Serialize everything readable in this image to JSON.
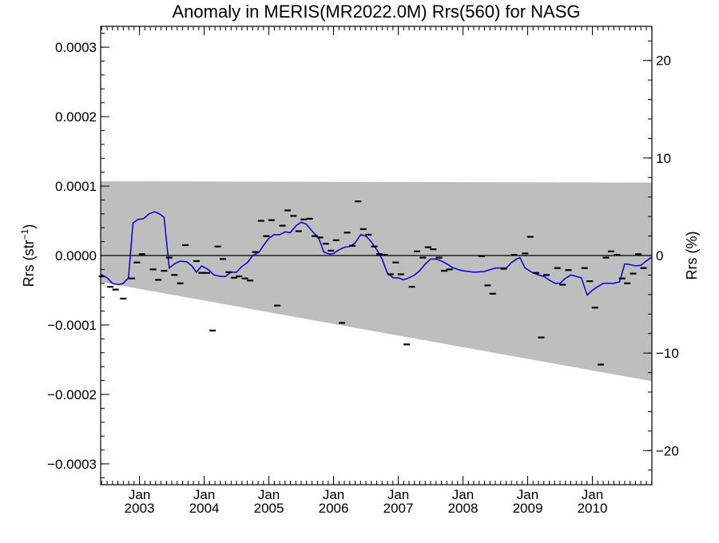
{
  "chart_data": {
    "type": "line",
    "title": "Anomaly in MERIS(MR2022.0M) Rrs(560) for NASG",
    "ylabel_left": "Rrs (str",
    "ylabel_left_sup": "−1",
    "ylabel_left_close": ")",
    "ylabel_right": "Rrs (%)",
    "x_range": [
      2002.4,
      2010.92
    ],
    "y_range": [
      -0.00033,
      0.00033
    ],
    "y_right_range": [
      -23.5,
      23.5
    ],
    "x_ticks": [
      {
        "x": 2003.0,
        "top": "Jan",
        "bottom": "2003"
      },
      {
        "x": 2004.0,
        "top": "Jan",
        "bottom": "2004"
      },
      {
        "x": 2005.0,
        "top": "Jan",
        "bottom": "2005"
      },
      {
        "x": 2006.0,
        "top": "Jan",
        "bottom": "2006"
      },
      {
        "x": 2007.0,
        "top": "Jan",
        "bottom": "2007"
      },
      {
        "x": 2008.0,
        "top": "Jan",
        "bottom": "2008"
      },
      {
        "x": 2009.0,
        "top": "Jan",
        "bottom": "2009"
      },
      {
        "x": 2010.0,
        "top": "Jan",
        "bottom": "2010"
      }
    ],
    "y_ticks_left": [
      {
        "v": 0.0003,
        "label": "0.0003"
      },
      {
        "v": 0.0002,
        "label": "0.0002"
      },
      {
        "v": 0.0001,
        "label": "0.0001"
      },
      {
        "v": 0.0,
        "label": "0.0000"
      },
      {
        "v": -0.0001,
        "label": "−0.0001"
      },
      {
        "v": -0.0002,
        "label": "−0.0002"
      },
      {
        "v": -0.0003,
        "label": "−0.0003"
      }
    ],
    "y_ticks_right": [
      {
        "v": 20,
        "label": "20"
      },
      {
        "v": 10,
        "label": "10"
      },
      {
        "v": 0,
        "label": "0"
      },
      {
        "v": -10,
        "label": "−10"
      },
      {
        "v": -20,
        "label": "−20"
      }
    ],
    "band": {
      "upper": [
        [
          2002.4,
          0.000107
        ],
        [
          2010.92,
          0.000105
        ]
      ],
      "lower": [
        [
          2002.4,
          -3.8e-05
        ],
        [
          2010.92,
          -0.000181
        ]
      ],
      "color": "#bebebe"
    },
    "zero_line": 0.0,
    "series": [
      {
        "style": "line",
        "color": "#0000dd",
        "points": [
          [
            2002.4,
            -2.7e-05
          ],
          [
            2002.5,
            -3.2e-05
          ],
          [
            2002.58,
            -4e-05
          ],
          [
            2002.67,
            -4.2e-05
          ],
          [
            2002.75,
            -4e-05
          ],
          [
            2002.83,
            -3.2e-05
          ],
          [
            2002.9,
            4.7e-05
          ],
          [
            2002.98,
            5.2e-05
          ],
          [
            2003.06,
            5.3e-05
          ],
          [
            2003.15,
            6e-05
          ],
          [
            2003.23,
            6.3e-05
          ],
          [
            2003.31,
            6e-05
          ],
          [
            2003.38,
            5.5e-05
          ],
          [
            2003.46,
            -1.8e-05
          ],
          [
            2003.54,
            -1.2e-05
          ],
          [
            2003.63,
            -8e-06
          ],
          [
            2003.73,
            -9e-06
          ],
          [
            2003.81,
            -1.5e-05
          ],
          [
            2003.88,
            -2.4e-05
          ],
          [
            2003.96,
            -1.5e-05
          ],
          [
            2004.06,
            -2e-05
          ],
          [
            2004.15,
            -2.8e-05
          ],
          [
            2004.25,
            -3e-05
          ],
          [
            2004.33,
            -3e-05
          ],
          [
            2004.41,
            -2.4e-05
          ],
          [
            2004.5,
            -2.4e-05
          ],
          [
            2004.58,
            -1.6e-05
          ],
          [
            2004.67,
            -1e-05
          ],
          [
            2004.75,
            0.0
          ],
          [
            2004.85,
            5e-06
          ],
          [
            2004.92,
            1.5e-05
          ],
          [
            2005.0,
            2.5e-05
          ],
          [
            2005.08,
            3e-05
          ],
          [
            2005.17,
            3e-05
          ],
          [
            2005.25,
            3.4e-05
          ],
          [
            2005.33,
            3.3e-05
          ],
          [
            2005.42,
            4.3e-05
          ],
          [
            2005.5,
            4.8e-05
          ],
          [
            2005.58,
            4.5e-05
          ],
          [
            2005.67,
            3.5e-05
          ],
          [
            2005.77,
            2.5e-05
          ],
          [
            2005.85,
            5e-06
          ],
          [
            2005.94,
            2e-06
          ],
          [
            2006.0,
            3e-06
          ],
          [
            2006.08,
            8e-06
          ],
          [
            2006.17,
            1.2e-05
          ],
          [
            2006.25,
            1.3e-05
          ],
          [
            2006.33,
            1.8e-05
          ],
          [
            2006.42,
            3e-05
          ],
          [
            2006.5,
            2.8e-05
          ],
          [
            2006.58,
            2e-05
          ],
          [
            2006.67,
            8e-06
          ],
          [
            2006.75,
            -5e-06
          ],
          [
            2006.83,
            -2.5e-05
          ],
          [
            2006.92,
            -3.2e-05
          ],
          [
            2007.0,
            -3.2e-05
          ],
          [
            2007.08,
            -3.5e-05
          ],
          [
            2007.17,
            -3.2e-05
          ],
          [
            2007.25,
            -2.8e-05
          ],
          [
            2007.33,
            -2.2e-05
          ],
          [
            2007.42,
            -1.2e-05
          ],
          [
            2007.5,
            -5e-06
          ],
          [
            2007.58,
            -5e-06
          ],
          [
            2007.67,
            -8e-06
          ],
          [
            2007.75,
            -1.2e-05
          ],
          [
            2007.83,
            -1.7e-05
          ],
          [
            2007.92,
            -2e-05
          ],
          [
            2008.0,
            -2.2e-05
          ],
          [
            2008.17,
            -2.4e-05
          ],
          [
            2008.33,
            -2.3e-05
          ],
          [
            2008.5,
            -1.8e-05
          ],
          [
            2008.67,
            -1.8e-05
          ],
          [
            2008.75,
            -1e-05
          ],
          [
            2008.83,
            -5e-06
          ],
          [
            2008.88,
            -3e-06
          ],
          [
            2008.96,
            -1.8e-05
          ],
          [
            2009.08,
            -2.5e-05
          ],
          [
            2009.17,
            -2.8e-05
          ],
          [
            2009.25,
            -3e-05
          ],
          [
            2009.33,
            -3.5e-05
          ],
          [
            2009.42,
            -4e-05
          ],
          [
            2009.5,
            -4e-05
          ],
          [
            2009.58,
            -3.3e-05
          ],
          [
            2009.67,
            -2.8e-05
          ],
          [
            2009.75,
            -3e-05
          ],
          [
            2009.83,
            -3.2e-05
          ],
          [
            2009.92,
            -5.7e-05
          ],
          [
            2010.0,
            -5e-05
          ],
          [
            2010.08,
            -4.5e-05
          ],
          [
            2010.17,
            -4e-05
          ],
          [
            2010.25,
            -4e-05
          ],
          [
            2010.33,
            -4e-05
          ],
          [
            2010.42,
            -3.8e-05
          ],
          [
            2010.5,
            -1.2e-05
          ],
          [
            2010.58,
            -1.3e-05
          ],
          [
            2010.67,
            -1.5e-05
          ],
          [
            2010.75,
            -1.4e-05
          ],
          [
            2010.83,
            -8e-06
          ],
          [
            2010.92,
            -2e-06
          ]
        ]
      },
      {
        "style": "markers",
        "color": "#000000",
        "points": [
          [
            2002.42,
            -3e-05
          ],
          [
            2002.55,
            -4.5e-05
          ],
          [
            2002.63,
            -4.9e-05
          ],
          [
            2002.75,
            -6.2e-05
          ],
          [
            2002.88,
            -3.3e-05
          ],
          [
            2002.96,
            -1e-05
          ],
          [
            2003.04,
            2e-06
          ],
          [
            2003.21,
            -2e-05
          ],
          [
            2003.29,
            -3.5e-05
          ],
          [
            2003.38,
            -2.2e-05
          ],
          [
            2003.46,
            -3e-06
          ],
          [
            2003.54,
            -2.8e-05
          ],
          [
            2003.63,
            -4e-05
          ],
          [
            2003.71,
            1.5e-05
          ],
          [
            2003.88,
            -8e-06
          ],
          [
            2003.96,
            -2.5e-05
          ],
          [
            2004.04,
            -2.5e-05
          ],
          [
            2004.13,
            -0.000108
          ],
          [
            2004.21,
            1.3e-05
          ],
          [
            2004.29,
            -5e-06
          ],
          [
            2004.38,
            -2.4e-05
          ],
          [
            2004.46,
            -3.2e-05
          ],
          [
            2004.54,
            -3e-05
          ],
          [
            2004.63,
            -3.3e-05
          ],
          [
            2004.71,
            -3.6e-05
          ],
          [
            2004.79,
            5e-06
          ],
          [
            2004.88,
            5e-05
          ],
          [
            2004.96,
            2.8e-05
          ],
          [
            2005.04,
            5.1e-05
          ],
          [
            2005.13,
            -7.2e-05
          ],
          [
            2005.21,
            4.3e-05
          ],
          [
            2005.29,
            6.5e-05
          ],
          [
            2005.38,
            5.7e-05
          ],
          [
            2005.46,
            3.5e-05
          ],
          [
            2005.54,
            5.2e-05
          ],
          [
            2005.63,
            5.3e-05
          ],
          [
            2005.71,
            2.8e-05
          ],
          [
            2005.79,
            2.6e-05
          ],
          [
            2005.88,
            1.7e-05
          ],
          [
            2005.96,
            7e-06
          ],
          [
            2006.04,
            2.2e-05
          ],
          [
            2006.13,
            -9.7e-05
          ],
          [
            2006.21,
            3.3e-05
          ],
          [
            2006.29,
            1.4e-05
          ],
          [
            2006.38,
            7.8e-05
          ],
          [
            2006.46,
            3.8e-05
          ],
          [
            2006.54,
            3e-05
          ],
          [
            2006.63,
            1.3e-05
          ],
          [
            2006.71,
            2e-06
          ],
          [
            2006.79,
            1e-06
          ],
          [
            2006.88,
            -2.7e-05
          ],
          [
            2006.96,
            -1e-05
          ],
          [
            2007.04,
            -2.7e-05
          ],
          [
            2007.13,
            -0.000128
          ],
          [
            2007.21,
            -4.5e-05
          ],
          [
            2007.29,
            6e-06
          ],
          [
            2007.38,
            -3e-06
          ],
          [
            2007.46,
            1.2e-05
          ],
          [
            2007.54,
            9e-06
          ],
          [
            2007.63,
            -3e-06
          ],
          [
            2007.71,
            -2.2e-05
          ],
          [
            2007.79,
            -2e-05
          ],
          [
            2008.29,
            -1e-06
          ],
          [
            2008.38,
            -4.3e-05
          ],
          [
            2008.46,
            -5.5e-05
          ],
          [
            2008.63,
            -1.9e-05
          ],
          [
            2008.79,
            1e-06
          ],
          [
            2008.96,
            3e-06
          ],
          [
            2009.04,
            2.7e-05
          ],
          [
            2009.13,
            -2.5e-05
          ],
          [
            2009.21,
            -0.000118
          ],
          [
            2009.29,
            -2.8e-05
          ],
          [
            2009.46,
            -1.8e-05
          ],
          [
            2009.54,
            -4.2e-05
          ],
          [
            2009.63,
            -2.1e-05
          ],
          [
            2009.88,
            -1.8e-05
          ],
          [
            2009.96,
            -3.7e-05
          ],
          [
            2010.04,
            -7.5e-05
          ],
          [
            2010.13,
            -0.000157
          ],
          [
            2010.21,
            -3e-06
          ],
          [
            2010.29,
            6e-06
          ],
          [
            2010.38,
            1e-06
          ],
          [
            2010.46,
            -3.3e-05
          ],
          [
            2010.54,
            -4e-05
          ],
          [
            2010.63,
            -2.6e-05
          ],
          [
            2010.71,
            2e-06
          ],
          [
            2010.79,
            -1.8e-05
          ]
        ]
      }
    ]
  }
}
